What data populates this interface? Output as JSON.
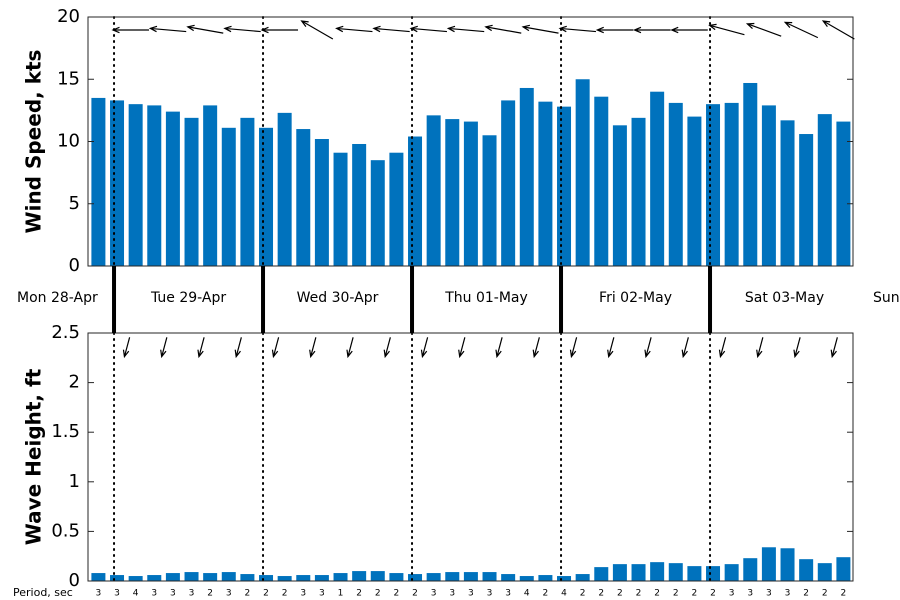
{
  "chart_data": [
    {
      "type": "bar",
      "ylabel": "Wind Speed, kts",
      "color": "#0072bd",
      "values": [
        13.5,
        13.3,
        13.0,
        12.9,
        12.4,
        11.9,
        12.9,
        11.1,
        11.9,
        11.1,
        12.3,
        11.0,
        10.2,
        9.1,
        9.8,
        8.5,
        9.1,
        10.4,
        12.1,
        11.8,
        11.6,
        10.5,
        13.3,
        14.3,
        13.2,
        12.8,
        15.0,
        13.6,
        11.3,
        11.9,
        14.0,
        13.1,
        12.0,
        13.0,
        13.1,
        14.7,
        12.9,
        11.7,
        10.6,
        12.2,
        11.6
      ],
      "ylim": [
        0,
        20
      ],
      "yticks": [
        0,
        5,
        10,
        15,
        20
      ],
      "arrow_directions": [
        270,
        275,
        280,
        275,
        270,
        300,
        275,
        275,
        275,
        275,
        280,
        280,
        275,
        270,
        270,
        270,
        285,
        290,
        295,
        300
      ]
    },
    {
      "type": "bar",
      "ylabel": "Wave Height, ft",
      "color": "#0072bd",
      "values": [
        0.08,
        0.06,
        0.05,
        0.06,
        0.08,
        0.09,
        0.08,
        0.09,
        0.07,
        0.06,
        0.05,
        0.06,
        0.06,
        0.08,
        0.1,
        0.1,
        0.08,
        0.07,
        0.08,
        0.09,
        0.09,
        0.09,
        0.07,
        0.05,
        0.06,
        0.05,
        0.07,
        0.14,
        0.17,
        0.17,
        0.19,
        0.18,
        0.15,
        0.15,
        0.17,
        0.23,
        0.34,
        0.33,
        0.22,
        0.18,
        0.24
      ],
      "ylim": [
        0,
        2.5
      ],
      "yticks": [
        0,
        0.5,
        1,
        1.5,
        2,
        2.5
      ],
      "arrow_directions": [
        195,
        195,
        195,
        195,
        195,
        195,
        195,
        195,
        195,
        195,
        195,
        195,
        195,
        195,
        195,
        195,
        195,
        195,
        195,
        195
      ]
    }
  ],
  "day_labels": [
    "Mon 28-Apr",
    "Tue 29-Apr",
    "Wed 30-Apr",
    "Thu 01-May",
    "Fri 02-May",
    "Sat 03-May",
    "Sun"
  ],
  "period_label": "Period, sec",
  "periods": [
    3,
    3,
    4,
    3,
    3,
    3,
    2,
    3,
    2,
    2,
    2,
    3,
    3,
    1,
    2,
    2,
    2,
    2,
    3,
    3,
    3,
    3,
    3,
    4,
    2,
    4,
    2,
    2,
    2,
    2,
    2,
    2,
    2,
    2,
    3,
    3,
    3,
    3,
    2,
    2,
    2
  ]
}
